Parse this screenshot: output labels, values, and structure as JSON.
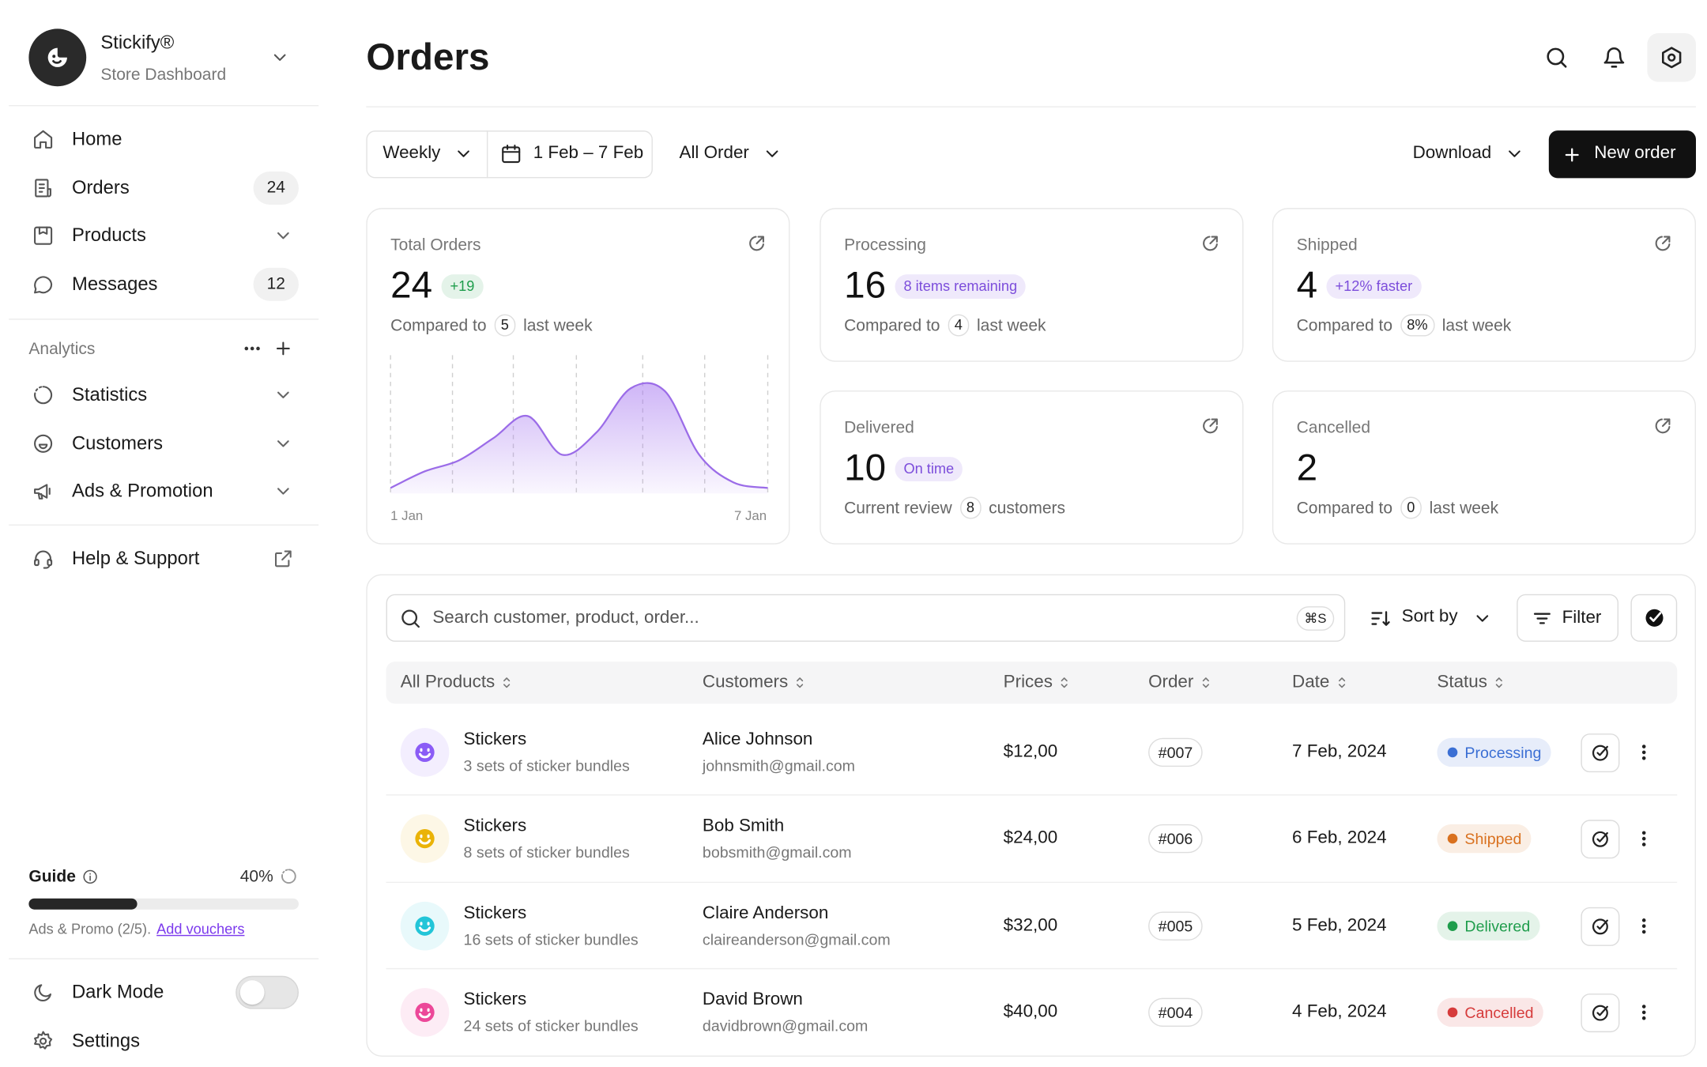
{
  "brand": {
    "name": "Stickify®",
    "subtitle": "Store Dashboard"
  },
  "nav": [
    {
      "label": "Home"
    },
    {
      "label": "Orders",
      "badge": 24
    },
    {
      "label": "Products"
    },
    {
      "label": "Messages",
      "badge": 12
    }
  ],
  "analytics": {
    "title": "Analytics",
    "items": [
      "Statistics",
      "Customers",
      "Ads & Promotion"
    ]
  },
  "help": "Help & Support",
  "guide": {
    "title": "Guide",
    "progress": 40,
    "progress_label": "40%",
    "text": "Ads & Promo (2/5).",
    "link": "Add vouchers"
  },
  "dark_mode": "Dark Mode",
  "settings": "Settings",
  "page_title": "Orders",
  "toolbar": {
    "period": "Weekly",
    "range": "1 Feb – 7 Feb",
    "filter": "All Order",
    "download": "Download",
    "new_order": "New order"
  },
  "cards": [
    {
      "title": "Total Orders",
      "value": 24,
      "badge": "+19",
      "badge_color": "#1f9d4c",
      "note": "Compared to",
      "count": 5,
      "suffix": "last week",
      "chart": {
        "values": [
          4,
          16,
          24,
          40,
          56,
          28,
          44,
          76,
          74,
          28,
          8,
          4
        ],
        "start": "1 Jan",
        "end": "7 Jan"
      }
    },
    {
      "title": "Processing",
      "value": 16,
      "badge": "8 items remaining",
      "badge_color": "#7c4ddb",
      "note": "Compared to",
      "count": 4,
      "suffix": "last week"
    },
    {
      "title": "Shipped",
      "value": 4,
      "badge": "+12% faster",
      "badge_color": "#7c4ddb",
      "note": "Compared to",
      "count": "8%",
      "suffix": "last week"
    },
    {
      "title": "Delivered",
      "value": 10,
      "badge": "On time",
      "badge_color": "#7c4ddb",
      "note": "Current review",
      "count": 8,
      "suffix": "customers"
    },
    {
      "title": "Cancelled",
      "value": 2,
      "note": "Compared to",
      "count": 0,
      "suffix": "last week"
    }
  ],
  "table": {
    "search": "Search customer, product, order...",
    "shortcut": "⌘S",
    "sort": "Sort by",
    "filter": "Filter",
    "columns": [
      "All Products",
      "Customers",
      "Prices",
      "Order",
      "Date",
      "Status"
    ],
    "rows": [
      {
        "product": "Stickers",
        "detail": "3 sets of sticker bundles",
        "customer": "Alice Johnson",
        "email": "johnsmith@gmail.com",
        "price": "$12,00",
        "order": "#007",
        "date": "7 Feb, 2024",
        "status": "Processing",
        "color": "#8b5cf6",
        "status_color": "#3b6fd4"
      },
      {
        "product": "Stickers",
        "detail": "8 sets of sticker bundles",
        "customer": "Bob Smith",
        "email": "bobsmith@gmail.com",
        "price": "$24,00",
        "order": "#006",
        "date": "6 Feb, 2024",
        "status": "Shipped",
        "color": "#eab308",
        "status_color": "#d9711f"
      },
      {
        "product": "Stickers",
        "detail": "16 sets of sticker bundles",
        "customer": "Claire Anderson",
        "email": "claireanderson@gmail.com",
        "price": "$32,00",
        "order": "#005",
        "date": "5 Feb, 2024",
        "status": "Delivered",
        "color": "#22c5d8",
        "status_color": "#1f9d4c"
      },
      {
        "product": "Stickers",
        "detail": "24 sets of sticker bundles",
        "customer": "David Brown",
        "email": "davidbrown@gmail.com",
        "price": "$40,00",
        "order": "#004",
        "date": "4 Feb, 2024",
        "status": "Cancelled",
        "color": "#ec4899",
        "status_color": "#d63b3b"
      }
    ]
  }
}
